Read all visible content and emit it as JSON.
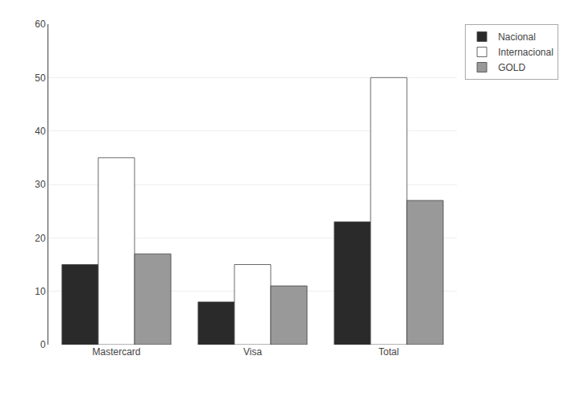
{
  "chart_data": {
    "type": "bar",
    "categories": [
      "Mastercard",
      "Visa",
      "Total"
    ],
    "series": [
      {
        "name": "Nacional",
        "color": "#2a2a2a",
        "values": [
          15,
          8,
          23
        ]
      },
      {
        "name": "Internacional",
        "color": "#ffffff",
        "values": [
          35,
          15,
          50
        ]
      },
      {
        "name": "GOLD",
        "color": "#999999",
        "values": [
          17,
          11,
          27
        ]
      }
    ],
    "ylim": [
      0,
      60
    ],
    "yticks": [
      0,
      10,
      20,
      30,
      40,
      50,
      60
    ],
    "grid": true,
    "legend": "right"
  }
}
